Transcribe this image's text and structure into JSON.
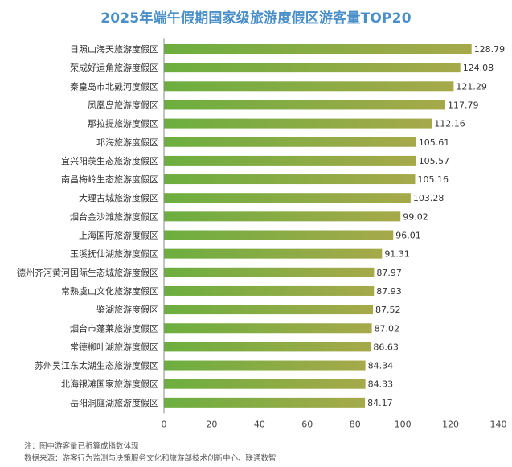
{
  "title": "2025年端午假期国家级旅游度假区游客量TOP20",
  "notes": [
    "注：图中游客量已折算成指数体现",
    "数据来源：游客行为监测与决策服务文化和旅游部技术创新中心、联通数智"
  ],
  "chart_data": {
    "type": "bar",
    "orientation": "horizontal",
    "categories": [
      "日照山海天旅游度假区",
      "荣成好运角旅游度假区",
      "秦皇岛市北戴河度假区",
      "凤凰岛旅游度假区",
      "那拉提旅游度假区",
      "邛海旅游度假区",
      "宜兴阳羡生态旅游度假区",
      "南昌梅岭生态旅游度假区",
      "大理古城旅游度假区",
      "烟台金沙滩旅游度假区",
      "上海国际旅游度假区",
      "玉溪抚仙湖旅游度假区",
      "德州齐河黄河国际生态城旅游度假区",
      "常熟虞山文化旅游度假区",
      "鉴湖旅游度假区",
      "烟台市蓬莱旅游度假区",
      "常德柳叶湖旅游度假区",
      "苏州吴江东太湖生态旅游度假区",
      "北海银滩国家旅游度假区",
      "岳阳洞庭湖旅游度假区"
    ],
    "values": [
      128.79,
      124.08,
      121.29,
      117.79,
      112.16,
      105.61,
      105.57,
      105.16,
      103.28,
      99.02,
      96.01,
      91.31,
      87.97,
      87.93,
      87.52,
      87.02,
      86.63,
      84.34,
      84.33,
      84.17
    ],
    "value_labels": [
      "128.79",
      "124.08",
      "121.29",
      "117.79",
      "112.16",
      "105.61",
      "105.57",
      "105.16",
      "103.28",
      "99.02",
      "96.01",
      "91.31",
      "87.97",
      "87.93",
      "87.52",
      "87.02",
      "86.63",
      "84.34",
      "84.33",
      "84.17"
    ],
    "xticks": [
      "0",
      "20",
      "40",
      "60",
      "80",
      "100",
      "120",
      "140"
    ],
    "xlim": [
      0,
      140
    ],
    "grid": false,
    "colors": {
      "bar_start": "#6cae3f",
      "bar_end": "#a6a94a",
      "axis": "#888888",
      "title": "#4a8fc9"
    }
  }
}
